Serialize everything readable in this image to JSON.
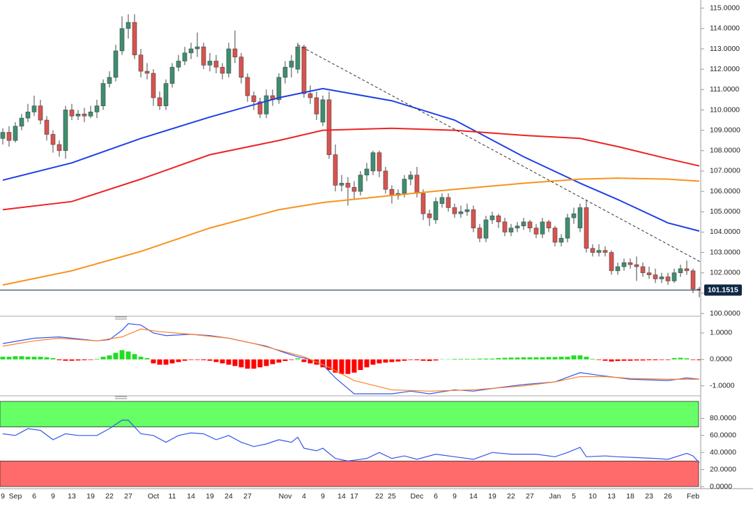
{
  "chart_data": [
    {
      "type": "candlestick",
      "categories": [
        "9",
        null,
        "Sep",
        null,
        null,
        "6",
        null,
        null,
        "9",
        null,
        null,
        "13",
        null,
        null,
        "19",
        null,
        null,
        "22",
        null,
        null,
        "27",
        null,
        null,
        null,
        "Oct",
        null,
        null,
        "11",
        null,
        null,
        "14",
        null,
        null,
        "19",
        null,
        null,
        "24",
        null,
        null,
        "27",
        null,
        null,
        null,
        null,
        null,
        "Nov",
        null,
        null,
        "4",
        null,
        null,
        "9",
        null,
        null,
        "14",
        null,
        "17",
        null,
        null,
        null,
        "22",
        null,
        "25",
        null,
        null,
        null,
        "Dec",
        null,
        null,
        "6",
        null,
        null,
        "9",
        null,
        null,
        "14",
        null,
        null,
        "19",
        null,
        null,
        "22",
        null,
        null,
        "27",
        null,
        null,
        null,
        "Jan",
        null,
        null,
        "5",
        null,
        null,
        "10",
        null,
        null,
        "13",
        null,
        null,
        "18",
        null,
        null,
        "23",
        null,
        null,
        "26",
        null,
        null,
        null,
        "Feb",
        null
      ],
      "open": [
        108.6,
        108.9,
        108.5,
        109.2,
        109.6,
        109.9,
        110.2,
        109.5,
        108.8,
        108.3,
        108.0,
        110.0,
        109.7,
        109.8,
        109.7,
        109.9,
        110.2,
        111.3,
        111.6,
        112.9,
        114.0,
        114.3,
        112.7,
        111.9,
        111.8,
        110.6,
        110.2,
        111.3,
        112.1,
        112.4,
        112.8,
        113.0,
        113.1,
        112.2,
        112.4,
        112.1,
        111.8,
        113.0,
        112.6,
        111.6,
        110.7,
        110.4,
        109.8,
        110.7,
        110.5,
        111.6,
        112.1,
        112.0,
        113.1,
        110.8,
        110.6,
        109.4,
        110.5,
        107.8,
        106.3,
        106.4,
        106.2,
        106.0,
        106.8,
        107.0,
        107.9,
        107.0,
        106.1,
        105.8,
        105.9,
        106.6,
        106.8,
        105.9,
        104.9,
        104.6,
        105.4,
        105.7,
        105.2,
        104.9,
        105.0,
        105.1,
        104.2,
        103.7,
        104.6,
        104.8,
        104.5,
        104.0,
        104.2,
        104.3,
        104.5,
        104.2,
        103.9,
        104.5,
        104.2,
        103.5,
        103.7,
        104.7,
        104.2,
        105.2,
        103.2,
        103.0,
        103.1,
        103.0,
        102.1,
        102.3,
        102.5,
        102.4,
        102.3,
        102.0,
        101.9,
        101.7,
        101.8,
        101.6,
        102.0,
        102.2,
        102.1,
        101.2
      ],
      "close": [
        108.9,
        108.5,
        109.2,
        109.6,
        109.9,
        110.2,
        109.5,
        108.8,
        108.3,
        108.0,
        110.0,
        109.7,
        109.8,
        109.7,
        109.9,
        110.2,
        111.3,
        111.6,
        112.9,
        114.0,
        114.3,
        112.7,
        111.9,
        111.8,
        110.6,
        110.2,
        111.3,
        112.1,
        112.4,
        112.8,
        113.0,
        113.1,
        112.2,
        112.4,
        112.1,
        111.8,
        113.0,
        112.6,
        111.6,
        110.7,
        110.4,
        109.8,
        110.7,
        110.5,
        111.6,
        112.1,
        112.4,
        113.1,
        110.8,
        110.6,
        109.8,
        110.5,
        107.8,
        106.3,
        106.4,
        106.2,
        106.0,
        106.8,
        107.1,
        107.9,
        107.0,
        106.1,
        105.8,
        105.9,
        106.6,
        106.8,
        105.9,
        104.9,
        104.7,
        105.5,
        105.7,
        105.2,
        104.9,
        105.0,
        105.1,
        104.2,
        103.7,
        104.6,
        104.8,
        104.5,
        104.0,
        104.2,
        104.3,
        104.5,
        104.2,
        103.9,
        104.5,
        104.2,
        103.5,
        103.7,
        104.7,
        104.9,
        105.2,
        103.2,
        103.0,
        103.1,
        103.0,
        102.1,
        102.3,
        102.5,
        102.4,
        102.3,
        102.0,
        101.9,
        101.7,
        101.8,
        101.6,
        102.0,
        102.2,
        102.1,
        101.2,
        101.15
      ],
      "high": [
        109.1,
        109.2,
        109.4,
        109.8,
        110.3,
        110.7,
        110.5,
        109.7,
        109.0,
        108.5,
        110.2,
        110.3,
        110.0,
        110.1,
        110.2,
        110.5,
        111.5,
        111.9,
        113.2,
        114.6,
        114.7,
        114.7,
        113.0,
        112.3,
        112.0,
        110.9,
        111.5,
        112.3,
        112.7,
        113.1,
        113.3,
        113.8,
        113.3,
        112.8,
        112.7,
        112.3,
        113.3,
        113.9,
        112.8,
        111.8,
        110.9,
        110.6,
        111.0,
        111.0,
        111.8,
        112.4,
        112.7,
        113.3,
        113.2,
        111.2,
        110.9,
        110.7,
        110.9,
        108.3,
        106.8,
        106.7,
        106.5,
        107.0,
        107.4,
        108.0,
        108.0,
        107.2,
        106.3,
        106.1,
        106.8,
        107.0,
        107.2,
        106.1,
        105.1,
        105.7,
        105.9,
        105.9,
        105.4,
        105.3,
        105.4,
        105.3,
        104.4,
        104.8,
        105.0,
        104.9,
        104.7,
        104.4,
        104.5,
        104.7,
        104.6,
        104.4,
        104.7,
        104.6,
        104.3,
        103.9,
        104.9,
        105.2,
        105.4,
        105.6,
        103.4,
        103.4,
        103.3,
        103.1,
        102.5,
        102.7,
        102.7,
        102.8,
        102.5,
        102.3,
        102.2,
        102.0,
        102.0,
        102.2,
        102.4,
        102.6,
        102.2,
        101.3
      ],
      "low": [
        108.3,
        108.2,
        108.4,
        109.0,
        109.4,
        109.7,
        109.3,
        108.5,
        107.9,
        107.7,
        107.6,
        109.5,
        109.5,
        109.4,
        109.6,
        109.6,
        110.0,
        111.1,
        111.4,
        112.7,
        113.5,
        112.5,
        111.6,
        111.5,
        110.2,
        110.0,
        110.0,
        111.1,
        111.9,
        112.2,
        112.5,
        112.6,
        112.0,
        111.9,
        111.8,
        111.5,
        111.6,
        112.3,
        111.3,
        110.4,
        110.0,
        109.6,
        109.6,
        110.2,
        110.3,
        111.3,
        111.6,
        111.8,
        110.6,
        110.3,
        109.5,
        109.2,
        107.6,
        106.0,
        106.0,
        105.3,
        105.6,
        105.8,
        106.5,
        106.8,
        106.7,
        105.9,
        105.4,
        105.6,
        105.7,
        106.3,
        105.7,
        104.6,
        104.3,
        104.4,
        105.2,
        105.0,
        104.7,
        104.7,
        104.8,
        104.0,
        103.5,
        103.5,
        104.4,
        104.2,
        103.8,
        103.8,
        104.0,
        104.1,
        104.0,
        103.7,
        103.7,
        104.0,
        103.3,
        103.3,
        103.5,
        104.4,
        104.0,
        103.0,
        102.8,
        102.8,
        102.8,
        101.9,
        101.9,
        102.1,
        102.2,
        101.6,
        101.8,
        101.7,
        101.5,
        101.5,
        101.4,
        101.5,
        101.8,
        101.9,
        101.0,
        100.8
      ],
      "up_color": "#3d8f6e",
      "down_color": "#d9534f",
      "series": [
        {
          "color": "#1f3fe6",
          "x": [
            0,
            11,
            22,
            33,
            44,
            51,
            62,
            72,
            83,
            92,
            98,
            106,
            111
          ],
          "values": [
            106.55,
            107.4,
            108.6,
            109.65,
            110.6,
            111.05,
            110.45,
            109.5,
            107.7,
            106.4,
            105.6,
            104.45,
            104.05
          ]
        },
        {
          "color": "#ee2222",
          "x": [
            0,
            11,
            22,
            33,
            44,
            51,
            62,
            72,
            83,
            92,
            98,
            106,
            111
          ],
          "values": [
            105.1,
            105.5,
            106.6,
            107.8,
            108.5,
            109.0,
            109.1,
            109.0,
            108.75,
            108.6,
            108.2,
            107.6,
            107.25
          ]
        },
        {
          "color": "#f7931e",
          "x": [
            0,
            11,
            22,
            33,
            44,
            51,
            62,
            72,
            83,
            92,
            98,
            106,
            111
          ],
          "values": [
            101.4,
            102.1,
            103.05,
            104.2,
            105.1,
            105.45,
            105.8,
            106.1,
            106.4,
            106.6,
            106.65,
            106.6,
            106.5
          ]
        }
      ],
      "trendline": {
        "x": [
          47,
          112
        ],
        "values": [
          113.2,
          102.4
        ],
        "color": "#333333"
      },
      "last_price": {
        "value": 101.1515,
        "label": "101.1515"
      },
      "ylim": [
        99.9,
        115.4
      ],
      "yticks": [
        {
          "value": 100,
          "label": "100.0000"
        },
        {
          "value": 101,
          "label": "101.0000"
        },
        {
          "value": 102,
          "label": "102.0000"
        },
        {
          "value": 103,
          "label": "103.0000"
        },
        {
          "value": 104,
          "label": "104.0000"
        },
        {
          "value": 105,
          "label": "105.0000"
        },
        {
          "value": 106,
          "label": "106.0000"
        },
        {
          "value": 107,
          "label": "107.0000"
        },
        {
          "value": 108,
          "label": "108.0000"
        },
        {
          "value": 109,
          "label": "109.0000"
        },
        {
          "value": 110,
          "label": "110.0000"
        },
        {
          "value": 111,
          "label": "111.0000"
        },
        {
          "value": 112,
          "label": "112.0000"
        },
        {
          "value": 113,
          "label": "113.0000"
        },
        {
          "value": 114,
          "label": "114.0000"
        },
        {
          "value": 115,
          "label": "115.0000"
        }
      ]
    },
    {
      "type": "macd",
      "series": [
        {
          "color": "#3355ee",
          "x": [
            0,
            5,
            9,
            15,
            17,
            19,
            20,
            22,
            24,
            26,
            30,
            33,
            36,
            39,
            42,
            45,
            47,
            49,
            51,
            53,
            56,
            59,
            62,
            65,
            68,
            72,
            75,
            78,
            83,
            88,
            92,
            95,
            100,
            106,
            109,
            111
          ],
          "values": [
            0.6,
            0.8,
            0.85,
            0.7,
            0.75,
            1.1,
            1.35,
            1.3,
            1.0,
            0.9,
            0.95,
            0.9,
            0.8,
            0.65,
            0.5,
            0.25,
            0.1,
            0.0,
            -0.2,
            -0.7,
            -1.3,
            -1.3,
            -1.3,
            -1.2,
            -1.3,
            -1.15,
            -1.2,
            -1.1,
            -0.95,
            -0.85,
            -0.5,
            -0.6,
            -0.75,
            -0.8,
            -0.7,
            -0.75
          ]
        },
        {
          "color": "#ff7f27",
          "x": [
            0,
            5,
            9,
            15,
            19,
            22,
            25,
            30,
            36,
            40,
            44,
            48,
            52,
            56,
            62,
            68,
            75,
            83,
            88,
            92,
            96,
            100,
            106,
            111
          ],
          "values": [
            0.5,
            0.7,
            0.8,
            0.7,
            0.85,
            1.15,
            1.05,
            0.95,
            0.8,
            0.6,
            0.35,
            0.1,
            -0.3,
            -0.8,
            -1.15,
            -1.2,
            -1.15,
            -1.0,
            -0.85,
            -0.65,
            -0.65,
            -0.72,
            -0.75,
            -0.75
          ]
        }
      ],
      "histogram": {
        "positive_color": "#22dd22",
        "negative_color": "#ff0000",
        "values": [
          0.1,
          0.1,
          0.12,
          0.12,
          0.1,
          0.1,
          0.1,
          0.08,
          0.05,
          -0.03,
          -0.05,
          -0.05,
          -0.04,
          -0.03,
          -0.02,
          0.02,
          0.1,
          0.15,
          0.25,
          0.35,
          0.3,
          0.2,
          0.1,
          0.05,
          -0.15,
          -0.2,
          -0.2,
          -0.15,
          -0.1,
          -0.05,
          -0.02,
          -0.02,
          -0.03,
          -0.05,
          -0.1,
          -0.15,
          -0.2,
          -0.25,
          -0.3,
          -0.35,
          -0.35,
          -0.3,
          -0.25,
          -0.18,
          -0.12,
          -0.06,
          -0.02,
          0.04,
          -0.1,
          -0.15,
          -0.2,
          -0.3,
          -0.4,
          -0.5,
          -0.55,
          -0.55,
          -0.5,
          -0.4,
          -0.3,
          -0.2,
          -0.15,
          -0.12,
          -0.1,
          -0.08,
          -0.05,
          -0.02,
          -0.03,
          -0.05,
          -0.06,
          -0.04,
          0.01,
          0.01,
          0.02,
          0.02,
          0.02,
          0.02,
          0.03,
          0.03,
          0.03,
          0.05,
          0.06,
          0.07,
          0.07,
          0.08,
          0.08,
          0.08,
          0.08,
          0.09,
          0.09,
          0.1,
          0.1,
          0.15,
          0.15,
          0.1,
          0.02,
          -0.02,
          -0.05,
          -0.08,
          -0.06,
          -0.05,
          -0.05,
          -0.04,
          -0.04,
          -0.03,
          -0.03,
          -0.02,
          -0.02,
          0.05,
          0.06,
          0.04,
          -0.02,
          -0.03
        ]
      },
      "ylim": [
        -1.35,
        1.5
      ],
      "yticks": [
        {
          "value": 1,
          "label": "1.0000"
        },
        {
          "value": 0,
          "label": "0.0000"
        },
        {
          "value": -1,
          "label": "-1.0000"
        }
      ]
    },
    {
      "type": "line",
      "zones": [
        {
          "from": 70,
          "to": 100,
          "color": "#66ff66"
        },
        {
          "from": 0,
          "to": 30,
          "color": "#ff6b6b"
        }
      ],
      "series": [
        {
          "color": "#3355ee",
          "x": [
            0,
            2,
            4,
            6,
            8,
            10,
            12,
            15,
            17,
            19,
            20,
            22,
            24,
            26,
            28,
            30,
            32,
            34,
            36,
            38,
            40,
            42,
            44,
            46,
            47,
            48,
            50,
            51,
            53,
            55,
            58,
            60,
            62,
            64,
            66,
            69,
            72,
            75,
            78,
            81,
            85,
            88,
            90,
            92,
            93,
            96,
            98,
            101,
            104,
            106,
            109,
            110,
            111
          ],
          "values": [
            62,
            60,
            68,
            66,
            55,
            62,
            60,
            60,
            68,
            78,
            78,
            62,
            60,
            52,
            60,
            63,
            62,
            55,
            60,
            52,
            47,
            50,
            55,
            52,
            58,
            45,
            42,
            45,
            33,
            30,
            33,
            40,
            33,
            36,
            32,
            38,
            35,
            32,
            40,
            38,
            38,
            35,
            40,
            46,
            35,
            36,
            35,
            34,
            33,
            32,
            39,
            36,
            28
          ]
        }
      ],
      "ylim": [
        0,
        100
      ],
      "yticks": [
        {
          "value": 0,
          "label": "0.0000"
        },
        {
          "value": 20,
          "label": "20.0000"
        },
        {
          "value": 40,
          "label": "40.0000"
        },
        {
          "value": 60,
          "label": "60.0000"
        },
        {
          "value": 80,
          "label": "80.0000"
        }
      ]
    }
  ]
}
